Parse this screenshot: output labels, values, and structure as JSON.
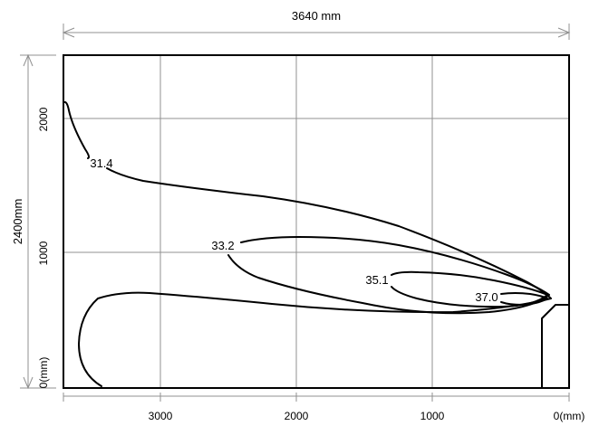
{
  "dimensions": {
    "width_label": "3640 mm",
    "height_label": "2400mm"
  },
  "axes": {
    "x_ticks": [
      "3000",
      "2000",
      "1000",
      "0(mm)"
    ],
    "y_ticks": [
      "2000",
      "1000",
      "0(mm)"
    ]
  },
  "contours": [
    {
      "value": "31.4"
    },
    {
      "value": "33.2"
    },
    {
      "value": "35.1"
    },
    {
      "value": "37.0"
    }
  ],
  "colors": {
    "contour": "#000000",
    "grid": "#909090",
    "frame": "#000000"
  }
}
